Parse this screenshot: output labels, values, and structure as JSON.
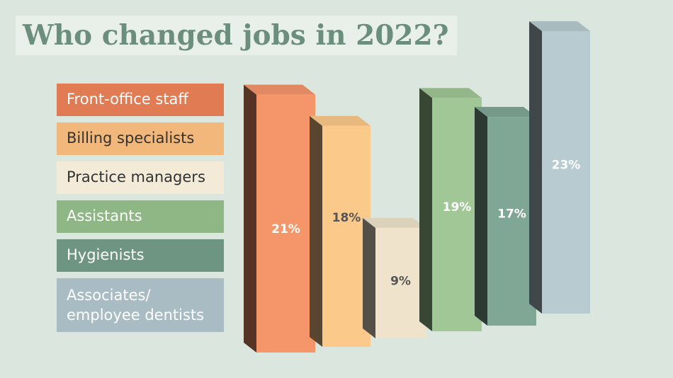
{
  "chart_data": {
    "type": "bar",
    "title": "Who changed jobs in 2022?",
    "categories": [
      "Front-office staff",
      "Billing specialists",
      "Practice managers",
      "Assistants",
      "Hygienists",
      "Associates/ employee dentists"
    ],
    "values": [
      21,
      18,
      9,
      19,
      17,
      23
    ],
    "value_labels": [
      "21%",
      "18%",
      "9%",
      "19%",
      "17%",
      "23%"
    ],
    "colors": [
      "#f4956a",
      "#fbc98a",
      "#efe3cb",
      "#a0c795",
      "#80a795",
      "#b7cbd0"
    ],
    "legend_colors": [
      "#e07b54",
      "#f2b77a",
      "#f4ead8",
      "#8fb785",
      "#6e9582",
      "#a9bcc3"
    ]
  }
}
